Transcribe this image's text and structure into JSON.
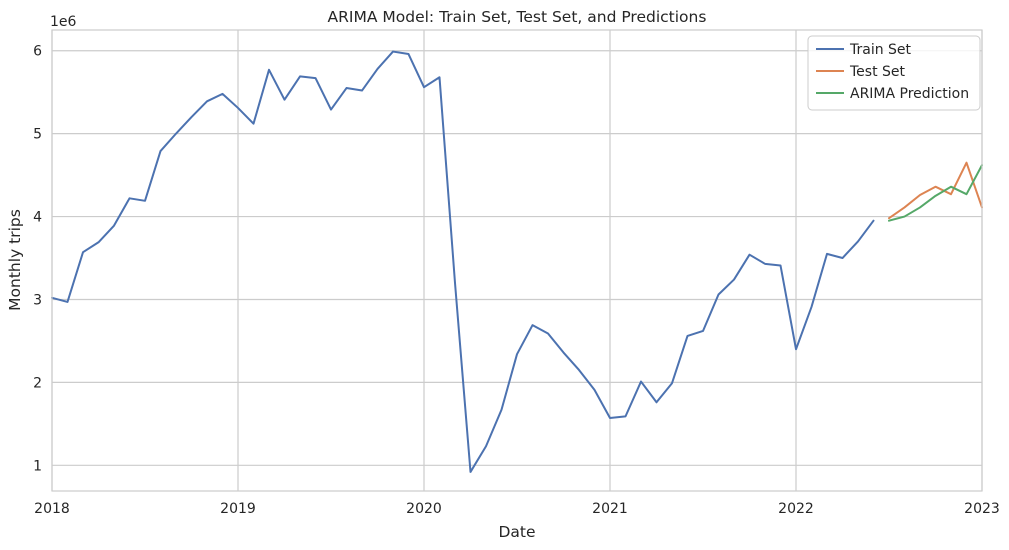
{
  "chart_data": {
    "type": "line",
    "title": "ARIMA Model: Train Set, Test Set, and Predictions",
    "xlabel": "Date",
    "ylabel": "Monthly trips",
    "y_offset_text": "1e6",
    "xlim": [
      "2018-01",
      "2023-01"
    ],
    "ylim": [
      690000,
      6250000
    ],
    "x_ticks": [
      "2018",
      "2019",
      "2020",
      "2021",
      "2022",
      "2023"
    ],
    "y_ticks": [
      1,
      2,
      3,
      4,
      5,
      6
    ],
    "grid": true,
    "legend_position": "top-right",
    "series": [
      {
        "name": "Train Set",
        "color": "#4c72b0",
        "x": [
          "2018-01",
          "2018-02",
          "2018-03",
          "2018-04",
          "2018-05",
          "2018-06",
          "2018-07",
          "2018-08",
          "2018-09",
          "2018-10",
          "2018-11",
          "2018-12",
          "2019-01",
          "2019-02",
          "2019-03",
          "2019-04",
          "2019-05",
          "2019-06",
          "2019-07",
          "2019-08",
          "2019-09",
          "2019-10",
          "2019-11",
          "2019-12",
          "2020-01",
          "2020-02",
          "2020-03",
          "2020-04",
          "2020-05",
          "2020-06",
          "2020-07",
          "2020-08",
          "2020-09",
          "2020-10",
          "2020-11",
          "2020-12",
          "2021-01",
          "2021-02",
          "2021-03",
          "2021-04",
          "2021-05",
          "2021-06",
          "2021-07",
          "2021-08",
          "2021-09",
          "2021-10",
          "2021-11",
          "2021-12",
          "2022-01",
          "2022-02",
          "2022-03",
          "2022-04",
          "2022-05",
          "2022-06"
        ],
        "values": [
          3020000,
          2970000,
          3570000,
          3690000,
          3890000,
          4220000,
          4190000,
          4790000,
          5000000,
          5200000,
          5390000,
          5480000,
          5310000,
          5120000,
          5770000,
          5410000,
          5690000,
          5670000,
          5290000,
          5550000,
          5520000,
          5780000,
          5990000,
          5960000,
          5560000,
          5680000,
          3200000,
          920000,
          1230000,
          1670000,
          2340000,
          2690000,
          2590000,
          2360000,
          2150000,
          1910000,
          1570000,
          1590000,
          2010000,
          1760000,
          1990000,
          2560000,
          2620000,
          3060000,
          3240000,
          3540000,
          3430000,
          3410000,
          2400000,
          2910000,
          3550000,
          3500000,
          3700000,
          3950000
        ]
      },
      {
        "name": "Test Set",
        "color": "#dd8452",
        "x": [
          "2022-07",
          "2022-08",
          "2022-09",
          "2022-10",
          "2022-11",
          "2022-12",
          "2023-01"
        ],
        "values": [
          3980000,
          4110000,
          4260000,
          4360000,
          4270000,
          4650000,
          4110000
        ]
      },
      {
        "name": "ARIMA Prediction",
        "color": "#55a868",
        "x": [
          "2022-07",
          "2022-08",
          "2022-09",
          "2022-10",
          "2022-11",
          "2022-12",
          "2023-01"
        ],
        "values": [
          3950000,
          4000000,
          4110000,
          4250000,
          4360000,
          4270000,
          4620000
        ]
      }
    ]
  }
}
